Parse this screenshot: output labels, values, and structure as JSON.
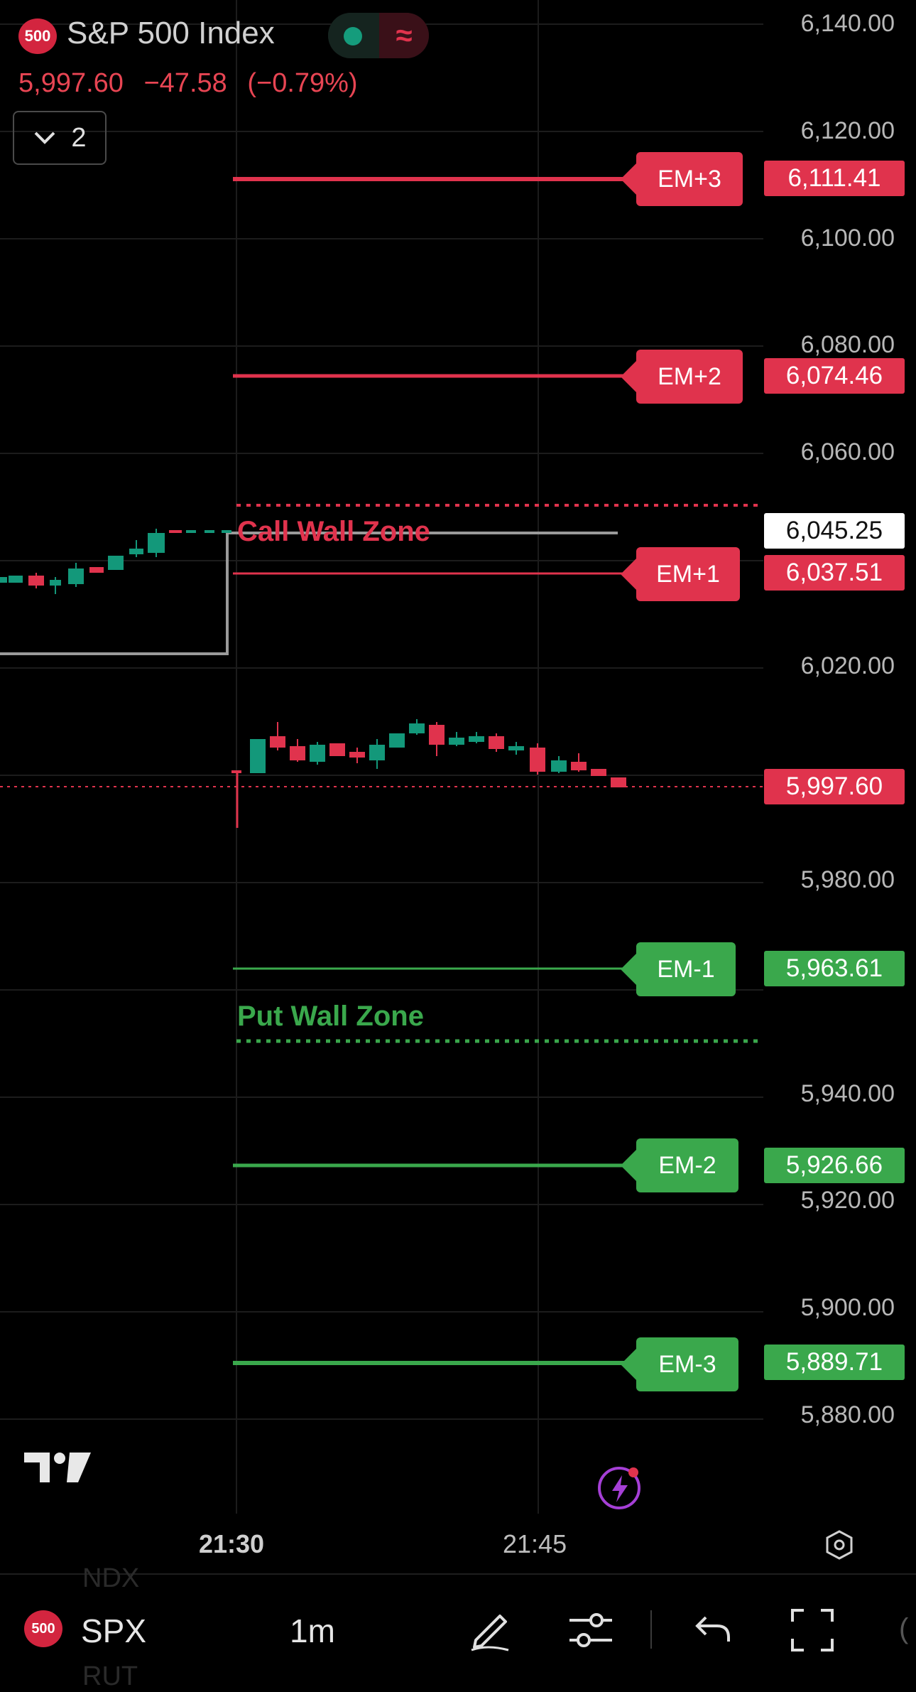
{
  "header": {
    "symbol_badge": "500",
    "title": "S&P 500 Index",
    "price": "5,997.60",
    "change": "−47.58",
    "change_pct": "(−0.79%)",
    "indicator_count": "2"
  },
  "price_axis": {
    "ticks": [
      "6,140.00",
      "6,120.00",
      "6,100.00",
      "6,080.00",
      "6,060.00",
      "6,020.00",
      "5,980.00",
      "5,940.00",
      "5,920.00",
      "5,900.00",
      "5,880.00"
    ],
    "current_price_tag": "5,997.60",
    "crosshair_tag": "6,045.25"
  },
  "levels": [
    {
      "label": "EM+3",
      "value": "6,111.41",
      "color": "#e0334d"
    },
    {
      "label": "EM+2",
      "value": "6,074.46",
      "color": "#e0334d"
    },
    {
      "label": "EM+1",
      "value": "6,037.51",
      "color": "#e0334d"
    },
    {
      "label": "EM-1",
      "value": "5,963.61",
      "color": "#3aa84c"
    },
    {
      "label": "EM-2",
      "value": "5,926.66",
      "color": "#3aa84c"
    },
    {
      "label": "EM-3",
      "value": "5,889.71",
      "color": "#3aa84c"
    }
  ],
  "zones": {
    "call": "Call Wall Zone",
    "put": "Put Wall Zone"
  },
  "time_axis": [
    "21:30",
    "21:45"
  ],
  "bottom_bar": {
    "symbol_badge": "500",
    "symbol": "SPX",
    "interval": "1m",
    "ghost_above": "NDX",
    "ghost_below": "RUT"
  },
  "colors": {
    "bear": "#e0334d",
    "bull": "#13987a",
    "put": "#3aa84c",
    "grid": "#1c1c1c"
  },
  "icons": [
    "tradingview-logo-icon",
    "lightning-icon",
    "settings-hexagon-icon",
    "draw-pen-icon",
    "indicators-sliders-icon",
    "undo-icon",
    "fullscreen-icon",
    "chevron-down-icon"
  ]
}
